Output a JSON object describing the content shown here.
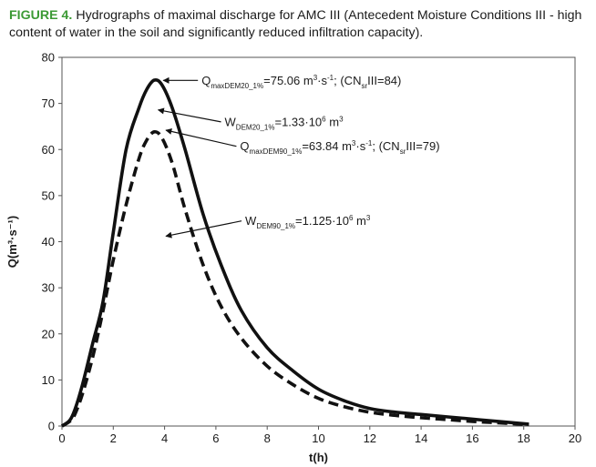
{
  "caption": {
    "label": "FIGURE 4.",
    "text": " Hydrographs of maximal discharge for AMC III (Antecedent Moisture Conditions III - high content of water in the soil and significantly reduced infiltration capacity)."
  },
  "chart_data": {
    "type": "line",
    "title": "",
    "xlabel": "t(h)",
    "ylabel": "Q(m³·s⁻¹)",
    "xlim": [
      0,
      20
    ],
    "ylim": [
      0,
      80
    ],
    "xticks": [
      0,
      2,
      4,
      6,
      8,
      10,
      12,
      14,
      16,
      18,
      20
    ],
    "yticks": [
      0,
      10,
      20,
      30,
      40,
      50,
      60,
      70,
      80
    ],
    "grid": false,
    "series": [
      {
        "name": "DEM20",
        "style": "solid",
        "color": "#111111",
        "x": [
          0,
          0.3,
          0.5,
          0.8,
          1.2,
          1.6,
          2.0,
          2.5,
          3.0,
          3.3,
          3.6,
          3.9,
          4.3,
          4.8,
          5.5,
          6.2,
          7.0,
          8.0,
          9.0,
          10.0,
          11.0,
          12.0,
          13.0,
          14.0,
          15.0,
          16.0,
          17.0,
          18.2
        ],
        "y": [
          0,
          1.2,
          3.5,
          9,
          18,
          27,
          42,
          60,
          69,
          73,
          75.06,
          74,
          69,
          60,
          46,
          35,
          25,
          17,
          12,
          8,
          5.5,
          3.8,
          3.0,
          2.5,
          2.0,
          1.5,
          1.0,
          0.4
        ]
      },
      {
        "name": "DEM90",
        "style": "dashed",
        "color": "#111111",
        "x": [
          0,
          0.3,
          0.5,
          0.8,
          1.2,
          1.6,
          2.0,
          2.5,
          3.0,
          3.3,
          3.6,
          3.9,
          4.3,
          4.8,
          5.5,
          6.2,
          7.0,
          8.0,
          9.0,
          10.0,
          11.0,
          12.0,
          13.0,
          14.0,
          15.0,
          16.0,
          17.0,
          18.2
        ],
        "y": [
          0,
          1.0,
          2.5,
          7,
          15,
          25,
          36,
          48,
          58,
          62,
          63.84,
          62.5,
          57,
          47,
          35,
          26,
          19,
          13,
          9,
          6,
          4.2,
          3.0,
          2.3,
          1.8,
          1.4,
          1.0,
          0.7,
          0.3
        ]
      }
    ],
    "annotations": [
      {
        "id": "qmax20",
        "parts": [
          {
            "t": "Q",
            "s": "n"
          },
          {
            "t": "maxDEM20_1%",
            "s": "sub"
          },
          {
            "t": "=75.06 m",
            "s": "n"
          },
          {
            "t": "3",
            "s": "sup"
          },
          {
            "t": "·s",
            "s": "n"
          },
          {
            "t": "-1",
            "s": "sup"
          },
          {
            "t": "; (CN",
            "s": "n"
          },
          {
            "t": "sr",
            "s": "sub"
          },
          {
            "t": "III=84)",
            "s": "n"
          }
        ],
        "arrow_from": [
          5.3,
          75.0
        ],
        "arrow_to": [
          3.95,
          75.0
        ]
      },
      {
        "id": "w20",
        "parts": [
          {
            "t": "W",
            "s": "n"
          },
          {
            "t": "DEM20_1%",
            "s": "sub"
          },
          {
            "t": "=1.33·10",
            "s": "n"
          },
          {
            "t": "6",
            "s": "sup"
          },
          {
            "t": " m",
            "s": "n"
          },
          {
            "t": "3",
            "s": "sup"
          }
        ],
        "arrow_from": [
          6.2,
          66.0
        ],
        "arrow_to": [
          3.75,
          68.6
        ]
      },
      {
        "id": "qmax90",
        "parts": [
          {
            "t": "Q",
            "s": "n"
          },
          {
            "t": "maxDEM90_1%",
            "s": "sub"
          },
          {
            "t": "=63.84 m",
            "s": "n"
          },
          {
            "t": "3",
            "s": "sup"
          },
          {
            "t": "·s",
            "s": "n"
          },
          {
            "t": "-1",
            "s": "sup"
          },
          {
            "t": "; (CN",
            "s": "n"
          },
          {
            "t": "sr",
            "s": "sub"
          },
          {
            "t": "III=79)",
            "s": "n"
          }
        ],
        "arrow_from": [
          6.8,
          60.7
        ],
        "arrow_to": [
          4.05,
          64.2
        ]
      },
      {
        "id": "w90",
        "parts": [
          {
            "t": "W",
            "s": "n"
          },
          {
            "t": "DEM90_1%",
            "s": "sub"
          },
          {
            "t": "=1.125·10",
            "s": "n"
          },
          {
            "t": "6",
            "s": "sup"
          },
          {
            "t": " m",
            "s": "n"
          },
          {
            "t": "3",
            "s": "sup"
          }
        ],
        "arrow_from": [
          7.0,
          44.5
        ],
        "arrow_to": [
          4.05,
          41.2
        ]
      }
    ]
  }
}
